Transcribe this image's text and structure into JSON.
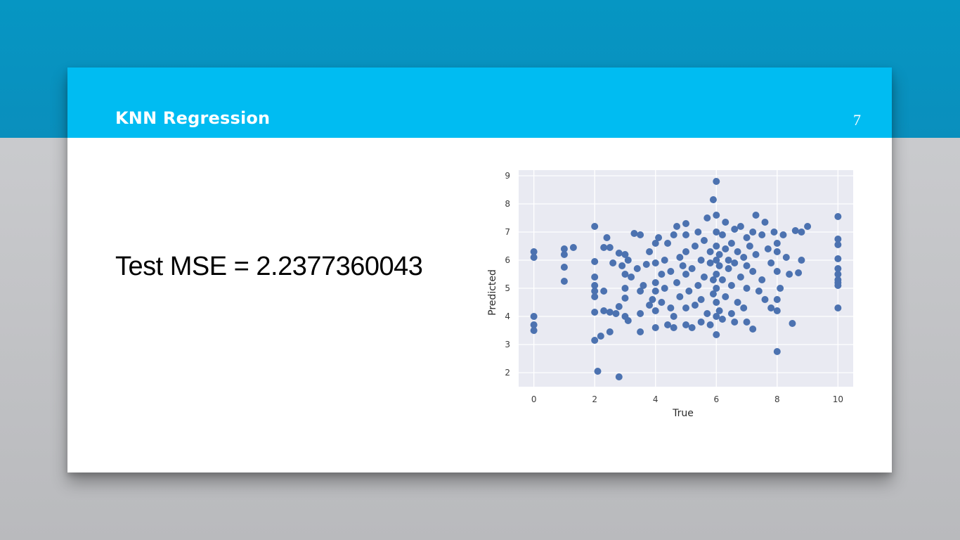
{
  "slide": {
    "title": "KNN Regression",
    "number": "7",
    "body_text": "Test MSE = 2.2377360043"
  },
  "colors": {
    "band": "#0a8fbd",
    "header": "#00bcf2",
    "plot_bg": "#e9eaf2",
    "point": "#4c72b0"
  },
  "chart_data": {
    "type": "scatter",
    "title": "",
    "xlabel": "True",
    "ylabel": "Predicted",
    "xlim": [
      -0.5,
      10.5
    ],
    "ylim": [
      1.5,
      9.2
    ],
    "xticks": [
      0,
      2,
      4,
      6,
      8,
      10
    ],
    "yticks": [
      2,
      3,
      4,
      5,
      6,
      7,
      8,
      9
    ],
    "grid": true,
    "points": [
      [
        0,
        6.3
      ],
      [
        0,
        6.1
      ],
      [
        0,
        4.0
      ],
      [
        0,
        3.7
      ],
      [
        0,
        3.5
      ],
      [
        1,
        6.4
      ],
      [
        1,
        6.2
      ],
      [
        1,
        5.75
      ],
      [
        1,
        5.25
      ],
      [
        1.3,
        6.45
      ],
      [
        2,
        7.2
      ],
      [
        2,
        5.95
      ],
      [
        2,
        5.4
      ],
      [
        2,
        5.1
      ],
      [
        2,
        4.9
      ],
      [
        2,
        4.7
      ],
      [
        2,
        4.15
      ],
      [
        2,
        3.15
      ],
      [
        2.1,
        2.05
      ],
      [
        2.2,
        3.3
      ],
      [
        2.3,
        4.9
      ],
      [
        2.3,
        4.2
      ],
      [
        2.3,
        6.45
      ],
      [
        2.4,
        6.8
      ],
      [
        2.5,
        6.45
      ],
      [
        2.5,
        3.45
      ],
      [
        2.5,
        4.15
      ],
      [
        2.6,
        5.9
      ],
      [
        2.7,
        4.1
      ],
      [
        2.8,
        6.25
      ],
      [
        2.8,
        4.35
      ],
      [
        2.8,
        1.85
      ],
      [
        2.9,
        5.8
      ],
      [
        3.0,
        6.2
      ],
      [
        3.0,
        5.5
      ],
      [
        3.0,
        5.0
      ],
      [
        3.0,
        4.65
      ],
      [
        3.0,
        4.0
      ],
      [
        3.1,
        3.85
      ],
      [
        3.1,
        6.0
      ],
      [
        3.2,
        5.4
      ],
      [
        3.3,
        6.95
      ],
      [
        3.4,
        5.7
      ],
      [
        3.5,
        4.9
      ],
      [
        3.5,
        4.1
      ],
      [
        3.5,
        3.45
      ],
      [
        3.5,
        6.9
      ],
      [
        3.6,
        5.1
      ],
      [
        3.7,
        5.85
      ],
      [
        3.8,
        4.4
      ],
      [
        3.8,
        6.3
      ],
      [
        3.9,
        4.6
      ],
      [
        4.0,
        5.2
      ],
      [
        4.0,
        6.6
      ],
      [
        4.0,
        5.9
      ],
      [
        4.0,
        4.9
      ],
      [
        4.0,
        4.2
      ],
      [
        4.0,
        3.6
      ],
      [
        4.1,
        6.8
      ],
      [
        4.2,
        5.5
      ],
      [
        4.2,
        4.5
      ],
      [
        4.3,
        6.0
      ],
      [
        4.3,
        5.0
      ],
      [
        4.4,
        6.6
      ],
      [
        4.4,
        3.7
      ],
      [
        4.5,
        4.3
      ],
      [
        4.5,
        5.6
      ],
      [
        4.6,
        6.9
      ],
      [
        4.6,
        4.0
      ],
      [
        4.6,
        3.6
      ],
      [
        4.7,
        5.2
      ],
      [
        4.7,
        7.2
      ],
      [
        4.8,
        6.1
      ],
      [
        4.8,
        4.7
      ],
      [
        4.9,
        5.8
      ],
      [
        5.0,
        3.7
      ],
      [
        5.0,
        4.3
      ],
      [
        5.0,
        5.5
      ],
      [
        5.0,
        6.3
      ],
      [
        5.0,
        7.3
      ],
      [
        5.0,
        6.9
      ],
      [
        5.1,
        4.9
      ],
      [
        5.2,
        3.6
      ],
      [
        5.2,
        5.7
      ],
      [
        5.3,
        4.4
      ],
      [
        5.3,
        6.5
      ],
      [
        5.4,
        7.0
      ],
      [
        5.4,
        5.1
      ],
      [
        5.5,
        3.8
      ],
      [
        5.5,
        6.0
      ],
      [
        5.5,
        4.6
      ],
      [
        5.6,
        6.7
      ],
      [
        5.6,
        5.4
      ],
      [
        5.7,
        7.5
      ],
      [
        5.7,
        4.1
      ],
      [
        5.8,
        5.9
      ],
      [
        5.8,
        3.7
      ],
      [
        5.8,
        6.3
      ],
      [
        5.9,
        8.15
      ],
      [
        5.9,
        5.3
      ],
      [
        5.9,
        4.8
      ],
      [
        6.0,
        3.35
      ],
      [
        6.0,
        4.0
      ],
      [
        6.0,
        4.5
      ],
      [
        6.0,
        5.0
      ],
      [
        6.0,
        5.5
      ],
      [
        6.0,
        6.0
      ],
      [
        6.0,
        6.5
      ],
      [
        6.0,
        7.0
      ],
      [
        6.0,
        7.6
      ],
      [
        6.0,
        8.8
      ],
      [
        6.1,
        5.8
      ],
      [
        6.1,
        6.2
      ],
      [
        6.1,
        4.2
      ],
      [
        6.2,
        3.9
      ],
      [
        6.2,
        6.9
      ],
      [
        6.2,
        5.3
      ],
      [
        6.3,
        7.35
      ],
      [
        6.3,
        6.4
      ],
      [
        6.3,
        4.7
      ],
      [
        6.4,
        5.7
      ],
      [
        6.4,
        6.0
      ],
      [
        6.5,
        4.1
      ],
      [
        6.5,
        6.6
      ],
      [
        6.5,
        5.1
      ],
      [
        6.6,
        7.1
      ],
      [
        6.6,
        3.8
      ],
      [
        6.6,
        5.9
      ],
      [
        6.7,
        6.3
      ],
      [
        6.7,
        4.5
      ],
      [
        6.8,
        5.4
      ],
      [
        6.8,
        7.2
      ],
      [
        6.9,
        6.1
      ],
      [
        6.9,
        4.3
      ],
      [
        7.0,
        5.8
      ],
      [
        7.0,
        6.8
      ],
      [
        7.0,
        3.8
      ],
      [
        7.0,
        5.0
      ],
      [
        7.1,
        6.5
      ],
      [
        7.2,
        3.55
      ],
      [
        7.2,
        7.0
      ],
      [
        7.2,
        5.6
      ],
      [
        7.3,
        7.6
      ],
      [
        7.3,
        6.2
      ],
      [
        7.4,
        4.9
      ],
      [
        7.5,
        6.9
      ],
      [
        7.5,
        5.3
      ],
      [
        7.6,
        7.35
      ],
      [
        7.6,
        4.6
      ],
      [
        7.7,
        6.4
      ],
      [
        7.8,
        5.9
      ],
      [
        7.8,
        4.3
      ],
      [
        7.9,
        7.0
      ],
      [
        8.0,
        6.3
      ],
      [
        8.0,
        5.6
      ],
      [
        8.0,
        4.6
      ],
      [
        8.0,
        4.2
      ],
      [
        8.0,
        2.75
      ],
      [
        8.0,
        6.6
      ],
      [
        8.1,
        5.0
      ],
      [
        8.2,
        6.9
      ],
      [
        8.3,
        6.1
      ],
      [
        8.4,
        5.5
      ],
      [
        8.5,
        3.75
      ],
      [
        8.6,
        7.05
      ],
      [
        8.7,
        5.55
      ],
      [
        8.8,
        7.0
      ],
      [
        8.8,
        6.0
      ],
      [
        9.0,
        7.2
      ],
      [
        10,
        7.55
      ],
      [
        10,
        6.75
      ],
      [
        10,
        6.55
      ],
      [
        10,
        6.05
      ],
      [
        10,
        5.7
      ],
      [
        10,
        5.5
      ],
      [
        10,
        5.3
      ],
      [
        10,
        5.2
      ],
      [
        10,
        5.1
      ],
      [
        10,
        4.3
      ]
    ]
  }
}
